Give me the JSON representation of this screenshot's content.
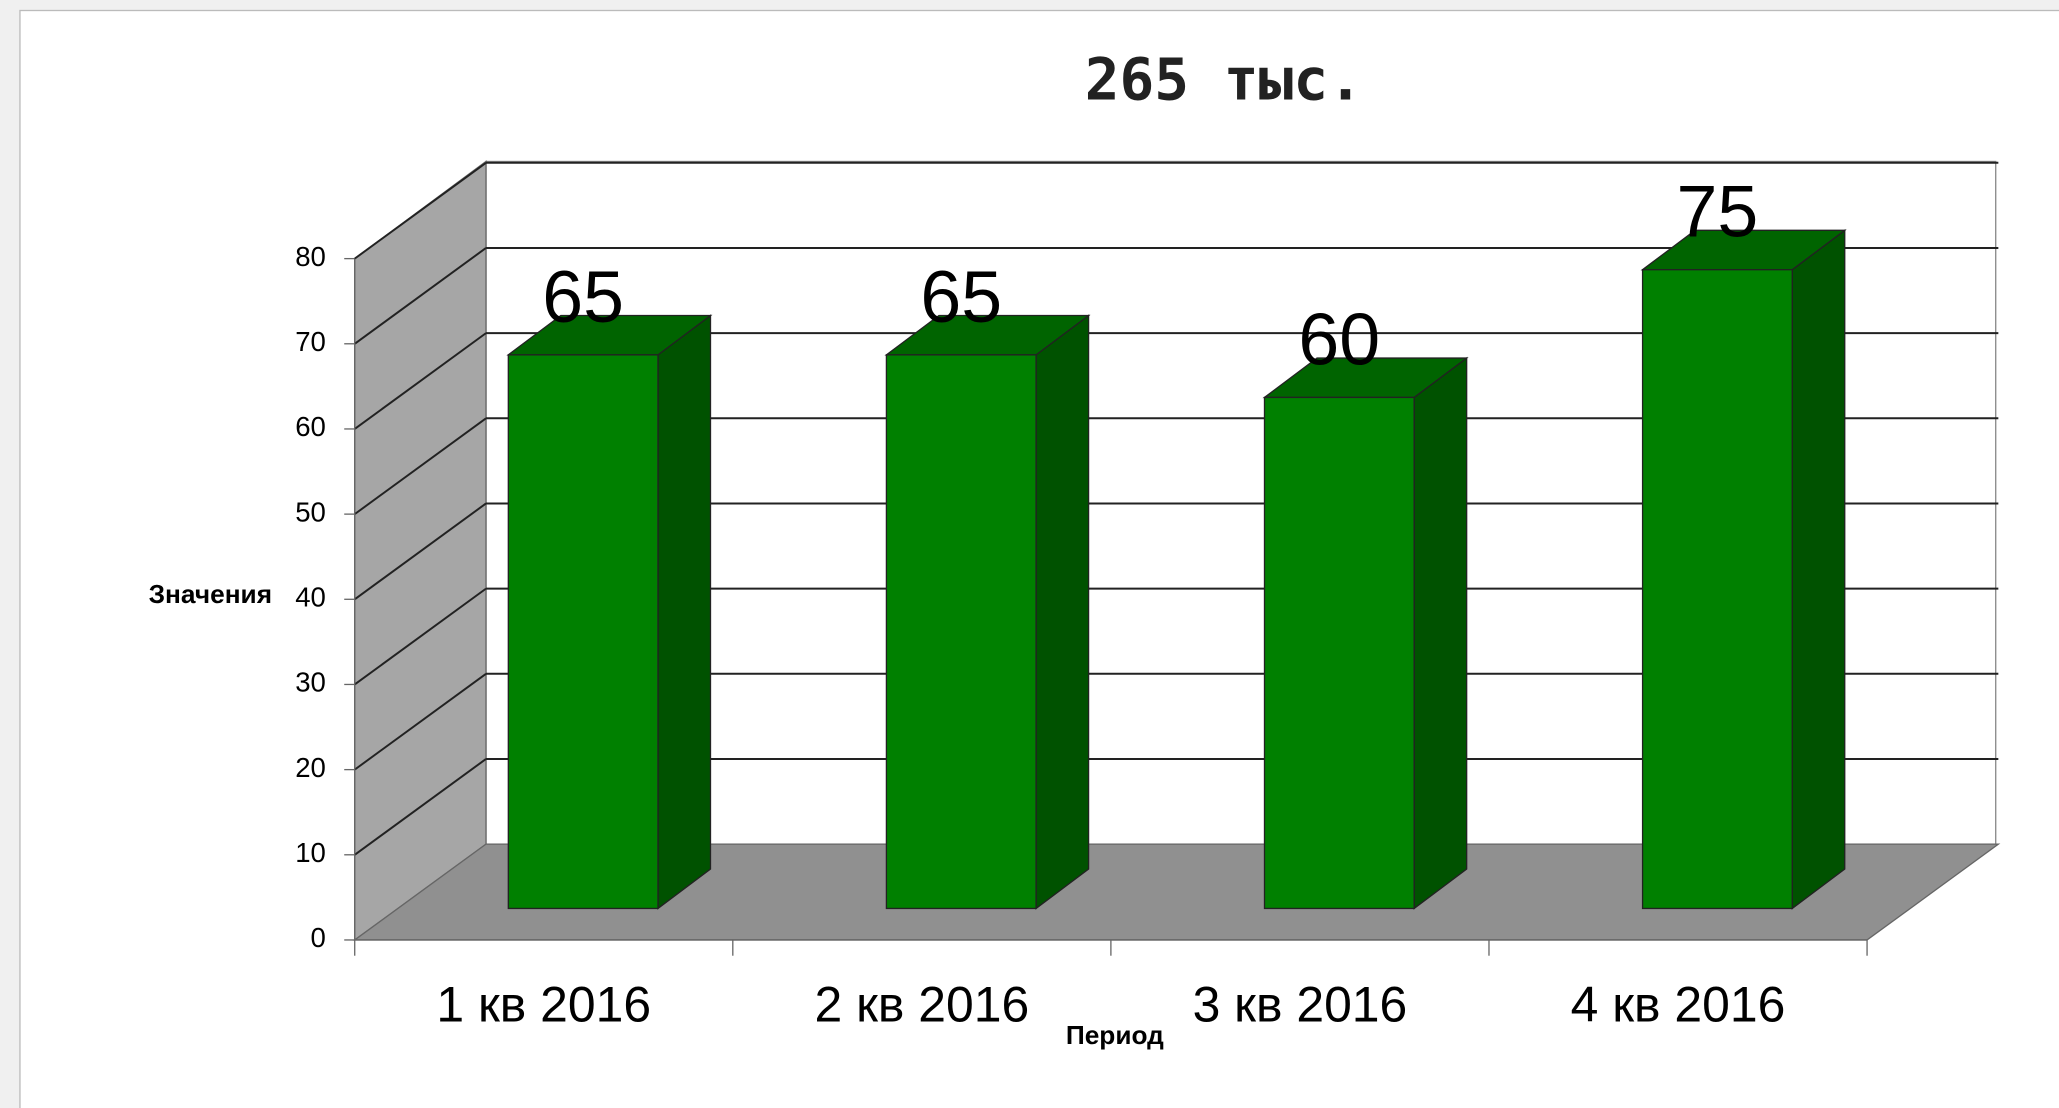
{
  "chart_data": {
    "type": "bar3d",
    "title": "265 тыс.",
    "y_label": "Значения",
    "x_label": "Период",
    "categories": [
      "1 кв 2016",
      "2 кв 2016",
      "3 кв 2016",
      "4 кв 2016"
    ],
    "values": [
      65,
      65,
      60,
      75
    ],
    "color": "#008000",
    "ylim": [
      0,
      80
    ],
    "yticks": [
      0,
      10,
      20,
      30,
      40,
      50,
      60,
      70,
      80
    ],
    "grid": true
  }
}
